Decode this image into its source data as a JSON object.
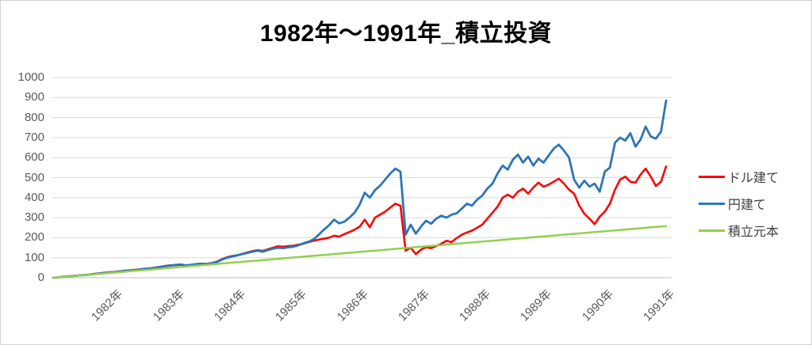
{
  "title": "1982年～1991年_積立投資",
  "colors": {
    "dollar_series": "#FF0000",
    "yen_series": "#2E75B6",
    "principal_series": "#92D050",
    "gridline": "#D9D9D9",
    "axis_line": "#BFBFBF",
    "tick_label": "#595959",
    "legend_label": "#404040"
  },
  "chart_data": {
    "type": "line",
    "title": "1982年～1991年_積立投資",
    "xlabel": "",
    "ylabel": "",
    "ylim": [
      0,
      1000
    ],
    "y_ticks": [
      0,
      100,
      200,
      300,
      400,
      500,
      600,
      700,
      800,
      900,
      1000
    ],
    "grid": "horizontal",
    "legend_position": "right",
    "x_unit": "months since Jan 1982",
    "x_months_total": 120,
    "x_tick_positions_months": [
      12,
      24,
      36,
      48,
      60,
      72,
      84,
      96,
      108,
      120
    ],
    "x_tick_labels": [
      "1982年",
      "1983年",
      "1984年",
      "1985年",
      "1986年",
      "1987年",
      "1988年",
      "1989年",
      "1990年",
      "1991年"
    ],
    "series": [
      {
        "name": "ドル建て",
        "color": "#FF0000",
        "values": [
          0,
          2,
          4,
          6,
          9,
          11,
          14,
          16,
          19,
          22,
          25,
          27,
          29,
          32,
          35,
          37,
          39,
          42,
          45,
          47,
          51,
          55,
          59,
          62,
          63,
          65,
          61,
          64,
          67,
          70,
          69,
          73,
          80,
          92,
          102,
          108,
          112,
          119,
          126,
          133,
          138,
          134,
          142,
          150,
          157,
          155,
          158,
          160,
          165,
          170,
          178,
          185,
          190,
          195,
          200,
          210,
          205,
          218,
          228,
          240,
          255,
          290,
          252,
          300,
          315,
          330,
          350,
          370,
          360,
          135,
          150,
          118,
          140,
          152,
          148,
          158,
          170,
          185,
          178,
          198,
          215,
          226,
          235,
          250,
          265,
          295,
          325,
          355,
          400,
          415,
          400,
          430,
          445,
          420,
          450,
          475,
          455,
          465,
          480,
          495,
          470,
          440,
          420,
          360,
          320,
          295,
          268,
          305,
          330,
          370,
          440,
          490,
          505,
          480,
          475,
          515,
          545,
          505,
          458,
          480,
          556
        ]
      },
      {
        "name": "円建て",
        "color": "#2E75B6",
        "values": [
          0,
          2,
          5,
          7,
          9,
          11,
          13,
          15,
          18,
          21,
          24,
          26,
          28,
          31,
          34,
          36,
          38,
          41,
          44,
          46,
          50,
          54,
          58,
          61,
          64,
          66,
          62,
          65,
          68,
          70,
          68,
          72,
          78,
          90,
          100,
          106,
          112,
          118,
          124,
          130,
          135,
          130,
          138,
          145,
          150,
          148,
          152,
          155,
          162,
          172,
          180,
          192,
          215,
          240,
          262,
          290,
          272,
          280,
          300,
          325,
          365,
          425,
          400,
          437,
          460,
          490,
          520,
          545,
          530,
          215,
          265,
          220,
          255,
          285,
          270,
          295,
          310,
          300,
          315,
          322,
          345,
          370,
          360,
          390,
          410,
          445,
          470,
          520,
          560,
          540,
          590,
          615,
          575,
          605,
          560,
          595,
          575,
          610,
          645,
          665,
          635,
          600,
          490,
          450,
          485,
          455,
          470,
          430,
          530,
          550,
          675,
          700,
          685,
          722,
          655,
          690,
          755,
          705,
          695,
          730,
          885
        ]
      },
      {
        "name": "積立元本",
        "color": "#92D050",
        "values": [
          0,
          2.2,
          4.3,
          6.5,
          8.6,
          10.8,
          12.9,
          15.1,
          17.2,
          19.4,
          21.5,
          23.7,
          25.8,
          28,
          30.1,
          32.3,
          34.4,
          36.6,
          38.7,
          40.9,
          43,
          45.2,
          47.3,
          49.5,
          51.6,
          53.8,
          55.9,
          58.1,
          60.2,
          62.4,
          64.5,
          66.7,
          68.8,
          71,
          73.1,
          75.3,
          77.4,
          79.6,
          81.7,
          83.9,
          86,
          88.2,
          90.3,
          92.5,
          94.6,
          96.8,
          98.9,
          101.1,
          103.2,
          105.4,
          107.5,
          109.7,
          111.8,
          114,
          116.1,
          118.3,
          120.4,
          122.6,
          124.7,
          126.9,
          129,
          131.2,
          133.3,
          135.5,
          137.6,
          139.8,
          141.9,
          144.1,
          146.2,
          148.4,
          150.5,
          152.7,
          154.8,
          157,
          159.1,
          161.3,
          163.4,
          165.6,
          167.7,
          169.9,
          172,
          174.2,
          176.3,
          178.5,
          180.6,
          182.8,
          184.9,
          187.1,
          189.2,
          191.4,
          193.5,
          195.7,
          197.8,
          200,
          202.1,
          204.3,
          206.4,
          208.6,
          210.7,
          212.9,
          215,
          217.2,
          219.3,
          221.5,
          223.6,
          225.8,
          227.9,
          230.1,
          232.2,
          234.4,
          236.5,
          238.7,
          240.8,
          243,
          245.1,
          247.3,
          249.4,
          251.6,
          253.7,
          255.9,
          258
        ]
      }
    ]
  }
}
